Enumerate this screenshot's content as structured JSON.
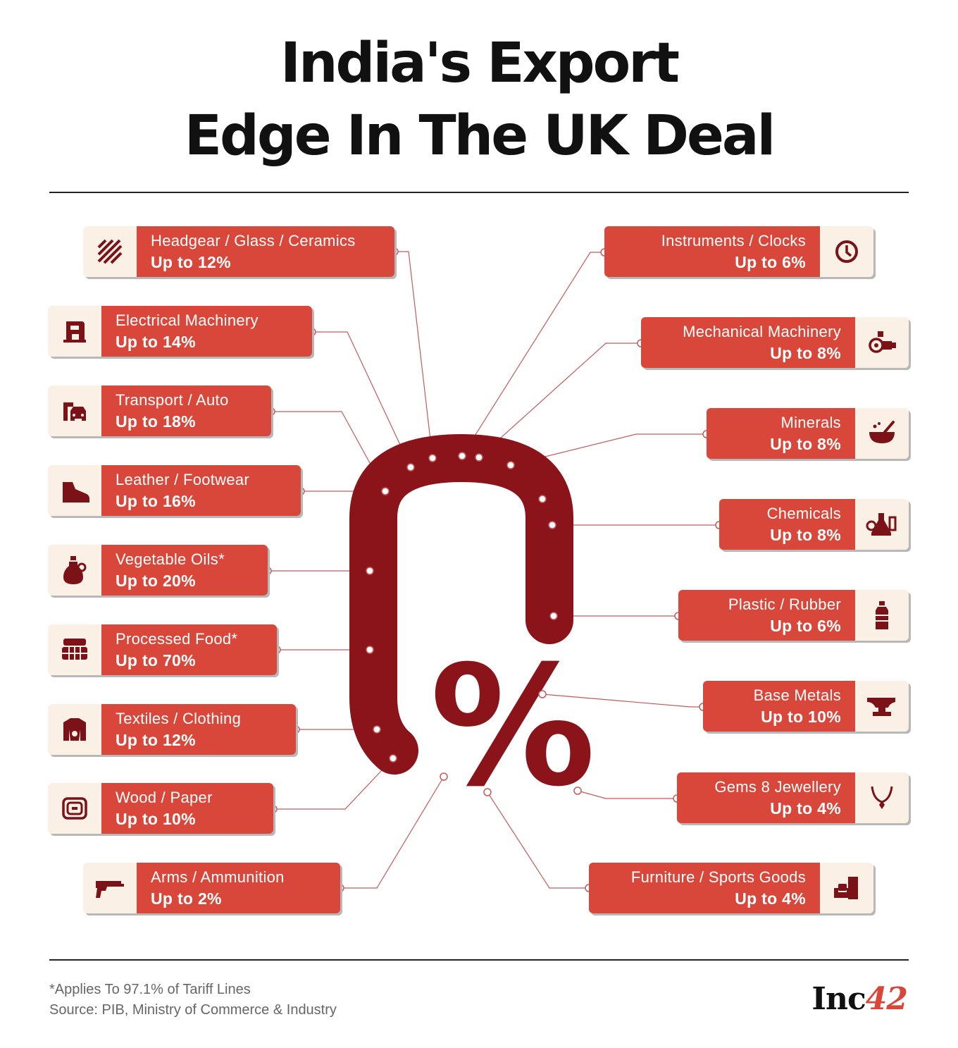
{
  "title": {
    "line1": "India's Export",
    "line2": "Edge In The UK Deal"
  },
  "center": {
    "value": "0",
    "unit": "%"
  },
  "categories_left": [
    {
      "name": "Headgear / Glass / Ceramics",
      "tariff": "Up to 12%",
      "icon": "tiles-icon"
    },
    {
      "name": "Electrical Machinery",
      "tariff": "Up to 14%",
      "icon": "sewing-machine-icon"
    },
    {
      "name": "Transport / Auto",
      "tariff": "Up to 18%",
      "icon": "car-icon"
    },
    {
      "name": "Leather / Footwear",
      "tariff": "Up to 16%",
      "icon": "shoe-icon"
    },
    {
      "name": "Vegetable Oils*",
      "tariff": "Up to 20%",
      "icon": "oil-jug-icon"
    },
    {
      "name": "Processed Food*",
      "tariff": "Up to 70%",
      "icon": "food-box-icon"
    },
    {
      "name": "Textiles / Clothing",
      "tariff": "Up to 12%",
      "icon": "jacket-icon"
    },
    {
      "name": "Wood / Paper",
      "tariff": "Up to 10%",
      "icon": "wood-log-icon"
    },
    {
      "name": "Arms / Ammunition",
      "tariff": "Up to 2%",
      "icon": "gun-icon"
    }
  ],
  "categories_right": [
    {
      "name": "Instruments / Clocks",
      "tariff": "Up to 6%",
      "icon": "clock-icon"
    },
    {
      "name": "Mechanical Machinery",
      "tariff": "Up to 8%",
      "icon": "motor-icon"
    },
    {
      "name": "Minerals",
      "tariff": "Up to 8%",
      "icon": "mortar-pestle-icon"
    },
    {
      "name": "Chemicals",
      "tariff": "Up to 8%",
      "icon": "flask-icon"
    },
    {
      "name": "Plastic / Rubber",
      "tariff": "Up to 6%",
      "icon": "bottle-icon"
    },
    {
      "name": "Base Metals",
      "tariff": "Up to 10%",
      "icon": "anvil-icon"
    },
    {
      "name": "Gems 8 Jewellery",
      "tariff": "Up to 4%",
      "icon": "necklace-icon"
    },
    {
      "name": "Furniture / Sports Goods",
      "tariff": "Up to 4%",
      "icon": "armchair-icon"
    }
  ],
  "footer": {
    "note": "*Applies To 97.1% of Tariff Lines",
    "source": "Source: PIB, Ministry of Commerce & Industry",
    "brand": "Inc",
    "brand_number": "42"
  },
  "colors": {
    "card_red": "#d9473b",
    "zero_dark_red": "#8b141b",
    "icon_bg": "#fbf0e6",
    "icon_ink": "#7a1218"
  }
}
